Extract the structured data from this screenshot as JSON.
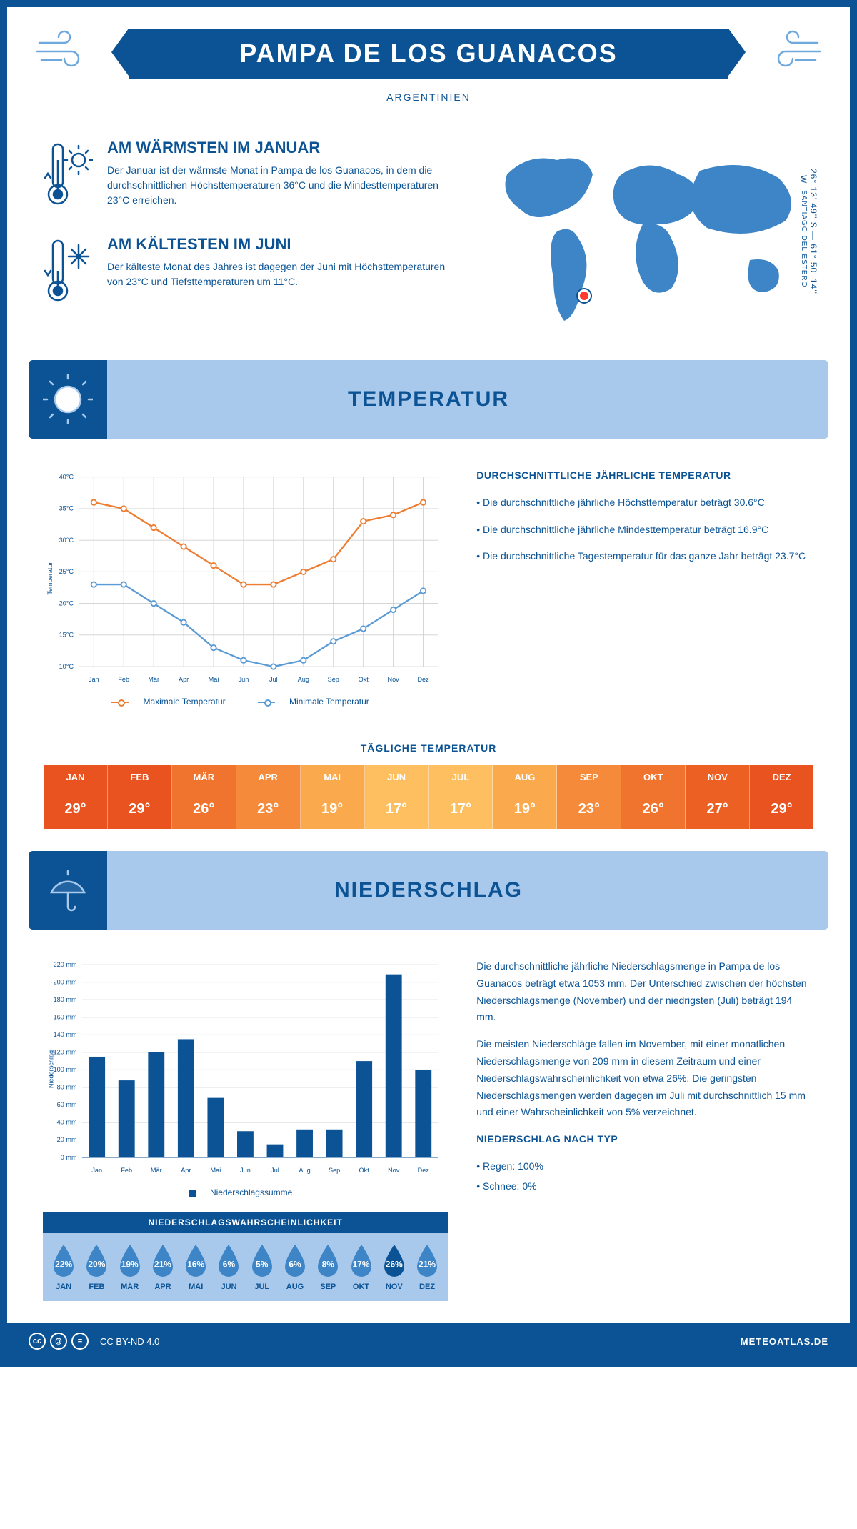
{
  "header": {
    "title": "PAMPA DE LOS GUANACOS",
    "country": "ARGENTINIEN",
    "coords": "26° 13' 49'' S — 61° 50' 14'' W",
    "region": "SANTIAGO DEL ESTERO"
  },
  "colors": {
    "primary": "#0b5394",
    "banner_bg": "#a9c9ec",
    "line_max": "#ed7d31",
    "line_min": "#5b9bd5",
    "bar": "#0b5394",
    "grid": "#d0d0d0"
  },
  "intro": {
    "warm_head": "AM WÄRMSTEN IM JANUAR",
    "warm_text": "Der Januar ist der wärmste Monat in Pampa de los Guanacos, in dem die durchschnittlichen Höchsttemperaturen 36°C und die Mindesttemperaturen 23°C erreichen.",
    "cold_head": "AM KÄLTESTEN IM JUNI",
    "cold_text": "Der kälteste Monat des Jahres ist dagegen der Juni mit Höchsttemperaturen von 23°C und Tiefsttemperaturen um 11°C."
  },
  "months": [
    "Jan",
    "Feb",
    "Mär",
    "Apr",
    "Mai",
    "Jun",
    "Jul",
    "Aug",
    "Sep",
    "Okt",
    "Nov",
    "Dez"
  ],
  "months_upper": [
    "JAN",
    "FEB",
    "MÄR",
    "APR",
    "MAI",
    "JUN",
    "JUL",
    "AUG",
    "SEP",
    "OKT",
    "NOV",
    "DEZ"
  ],
  "temperature": {
    "section_title": "TEMPERATUR",
    "side_head": "DURCHSCHNITTLICHE JÄHRLICHE TEMPERATUR",
    "bullet1": "• Die durchschnittliche jährliche Höchsttemperatur beträgt 30.6°C",
    "bullet2": "• Die durchschnittliche jährliche Mindesttemperatur beträgt 16.9°C",
    "bullet3": "• Die durchschnittliche Tagestemperatur für das ganze Jahr beträgt 23.7°C",
    "y_label": "Temperatur",
    "y_min": 10,
    "y_max": 40,
    "y_step": 5,
    "y_unit": "°C",
    "max_series": [
      36,
      35,
      32,
      29,
      26,
      23,
      23,
      25,
      27,
      33,
      34,
      36
    ],
    "min_series": [
      23,
      23,
      20,
      17,
      13,
      11,
      10,
      11,
      14,
      16,
      19,
      22
    ],
    "legend_max": "Maximale Temperatur",
    "legend_min": "Minimale Temperatur",
    "daily_title": "TÄGLICHE TEMPERATUR",
    "daily_values": [
      "29°",
      "29°",
      "26°",
      "23°",
      "19°",
      "17°",
      "17°",
      "19°",
      "23°",
      "26°",
      "27°",
      "29°"
    ],
    "daily_raw": [
      29,
      29,
      26,
      23,
      19,
      17,
      17,
      19,
      23,
      26,
      27,
      29
    ],
    "daily_gradient": [
      "#e8531f",
      "#e8531f",
      "#f0742d",
      "#f58b3a",
      "#faa94c",
      "#fdbf5f",
      "#fdbf5f",
      "#faa94c",
      "#f58b3a",
      "#f0742d",
      "#ec6024",
      "#e8531f"
    ]
  },
  "precipitation": {
    "section_title": "NIEDERSCHLAG",
    "y_label": "Niederschlag",
    "y_min": 0,
    "y_max": 220,
    "y_step": 20,
    "y_unit": " mm",
    "values": [
      115,
      88,
      120,
      135,
      68,
      30,
      15,
      32,
      32,
      110,
      209,
      100
    ],
    "legend": "Niederschlagssumme",
    "prob_title": "NIEDERSCHLAGSWAHRSCHEINLICHKEIT",
    "probs": [
      22,
      20,
      19,
      21,
      16,
      6,
      5,
      6,
      8,
      17,
      26,
      21
    ],
    "max_prob_index": 10,
    "drop_color": "#3d85c6",
    "drop_color_max": "#0b5394",
    "text1": "Die durchschnittliche jährliche Niederschlagsmenge in Pampa de los Guanacos beträgt etwa 1053 mm. Der Unterschied zwischen der höchsten Niederschlagsmenge (November) und der niedrigsten (Juli) beträgt 194 mm.",
    "text2": "Die meisten Niederschläge fallen im November, mit einer monatlichen Niederschlagsmenge von 209 mm in diesem Zeitraum und einer Niederschlagswahrscheinlichkeit von etwa 26%. Die geringsten Niederschlagsmengen werden dagegen im Juli mit durchschnittlich 15 mm und einer Wahrscheinlichkeit von 5% verzeichnet.",
    "type_head": "NIEDERSCHLAG NACH TYP",
    "type1": "• Regen: 100%",
    "type2": "• Schnee: 0%"
  },
  "footer": {
    "license": "CC BY-ND 4.0",
    "site": "METEOATLAS.DE"
  }
}
